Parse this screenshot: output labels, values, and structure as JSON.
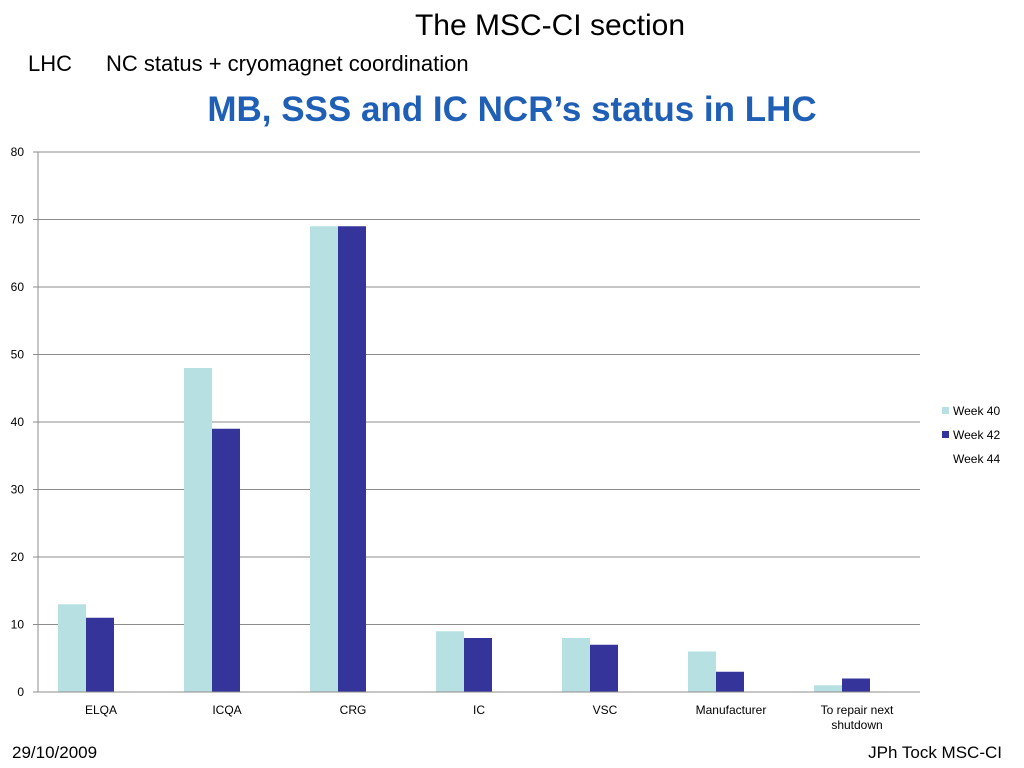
{
  "slide": {
    "header": "The MSC-CI section",
    "subtitle_left": "LHC",
    "subtitle_right": "NC status + cryomagnet coordination",
    "footer_date": "29/10/2009",
    "footer_author": "JPh Tock MSC-CI"
  },
  "chart_data": {
    "type": "bar",
    "title": "MB, SSS and IC NCR’s status in LHC",
    "xlabel": "",
    "ylabel": "",
    "ylim": [
      0,
      80
    ],
    "yticks": [
      0,
      10,
      20,
      30,
      40,
      50,
      60,
      70,
      80
    ],
    "grid": true,
    "legend_position": "right",
    "categories": [
      "ELQA",
      "ICQA",
      "CRG",
      "IC",
      "VSC",
      "Manufacturer",
      "To repair next shutdown"
    ],
    "series": [
      {
        "name": "Week 40",
        "color": "#b7e0e3",
        "values": [
          13,
          48,
          69,
          9,
          8,
          6,
          1
        ]
      },
      {
        "name": "Week 42",
        "color": "#35349b",
        "values": [
          11,
          39,
          69,
          8,
          7,
          3,
          2
        ]
      },
      {
        "name": "Week 44",
        "color": "#ffffff",
        "values": [
          0,
          0,
          0,
          0,
          0,
          0,
          0
        ]
      }
    ]
  }
}
